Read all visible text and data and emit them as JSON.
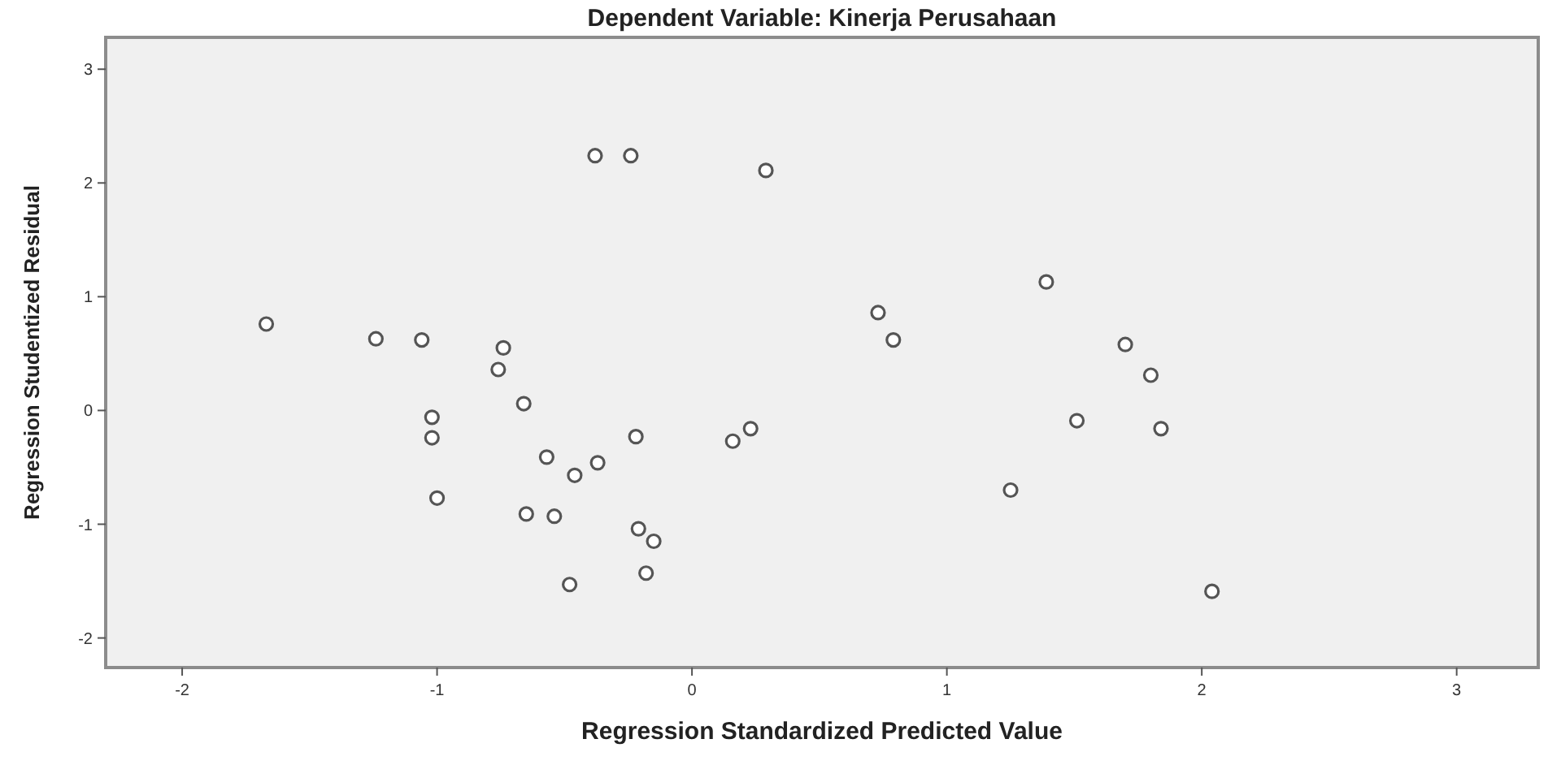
{
  "chart_data": {
    "type": "scatter",
    "title": "Dependent Variable: Kinerja Perusahaan",
    "xlabel": "Regression Standardized Predicted Value",
    "ylabel": "Regression Studentized Residual",
    "xlim": [
      -2.3,
      3.32
    ],
    "ylim": [
      -2.26,
      3.28
    ],
    "xticks": [
      -2,
      -1,
      0,
      1,
      2,
      3
    ],
    "yticks": [
      -2,
      -1,
      0,
      1,
      2,
      3
    ],
    "grid": false,
    "marker": "circle",
    "series": [
      {
        "color": "#555555",
        "x": [
          -1.67,
          -1.24,
          -1.06,
          -0.74,
          -0.76,
          -0.66,
          -1.02,
          -1.02,
          -1.0,
          -0.38,
          -0.24,
          0.29,
          -0.57,
          -0.37,
          -0.46,
          -0.22,
          -0.65,
          -0.54,
          -0.21,
          -0.15,
          -0.18,
          -0.48,
          0.16,
          0.23,
          0.73,
          0.79,
          1.39,
          1.25,
          1.7,
          1.8,
          1.51,
          1.84,
          2.04
        ],
        "values": [
          0.76,
          0.63,
          0.62,
          0.55,
          0.36,
          0.06,
          -0.06,
          -0.24,
          -0.77,
          2.24,
          2.24,
          2.11,
          -0.41,
          -0.46,
          -0.57,
          -0.23,
          -0.91,
          -0.93,
          -1.04,
          -1.15,
          -1.43,
          -1.53,
          -0.27,
          -0.16,
          0.86,
          0.62,
          1.13,
          -0.7,
          0.58,
          0.31,
          -0.09,
          -0.16,
          -1.59
        ]
      }
    ]
  }
}
